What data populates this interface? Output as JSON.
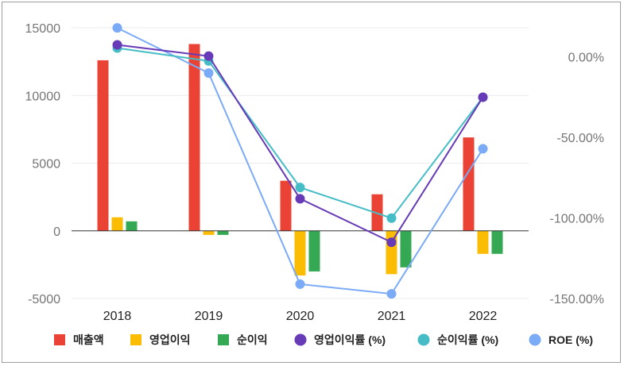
{
  "chart_data": {
    "type": "bar+line",
    "categories": [
      "2018",
      "2019",
      "2020",
      "2021",
      "2022"
    ],
    "left_axis": {
      "ticks": [
        15000,
        10000,
        5000,
        0,
        -5000
      ],
      "tick_labels": [
        "15000",
        "10000",
        "5000",
        "0",
        "-5000"
      ],
      "ylim": [
        -5000,
        15000
      ]
    },
    "right_axis": {
      "ticks": [
        0,
        -50,
        -100,
        -150
      ],
      "tick_labels": [
        "0.00%",
        "-50.00%",
        "-100.00%",
        "-150.00%"
      ],
      "ylim": [
        -150,
        18
      ]
    },
    "bar_series": [
      {
        "name": "매출액",
        "color": "#ea4335",
        "values": [
          12600,
          13800,
          3700,
          2700,
          6900
        ]
      },
      {
        "name": "영업이익",
        "color": "#fbbc04",
        "values": [
          1000,
          -300,
          -3300,
          -3200,
          -1700
        ]
      },
      {
        "name": "순이익",
        "color": "#34a853",
        "values": [
          700,
          -300,
          -3000,
          -2700,
          -1700
        ]
      }
    ],
    "line_series": [
      {
        "name": "영업이익률 (%)",
        "color": "#673ab7",
        "values": [
          7.5,
          0.5,
          -88,
          -115,
          -25
        ]
      },
      {
        "name": "순이익률 (%)",
        "color": "#46bdc6",
        "values": [
          5.5,
          -2.5,
          -81,
          -100,
          -25
        ]
      },
      {
        "name": "ROE (%)",
        "color": "#7baaf7",
        "values": [
          18,
          -10,
          -141,
          -147,
          -57
        ]
      }
    ],
    "legend": {
      "position": "bottom",
      "items": [
        {
          "label": "매출액",
          "marker": "square",
          "color": "#ea4335"
        },
        {
          "label": "영업이익",
          "marker": "square",
          "color": "#fbbc04"
        },
        {
          "label": "순이익",
          "marker": "square",
          "color": "#34a853"
        },
        {
          "label": "영업이익률 (%)",
          "marker": "circle",
          "color": "#673ab7"
        },
        {
          "label": "순이익률 (%)",
          "marker": "circle",
          "color": "#46bdc6"
        },
        {
          "label": "ROE (%)",
          "marker": "circle",
          "color": "#7baaf7"
        }
      ]
    },
    "grid": true
  }
}
